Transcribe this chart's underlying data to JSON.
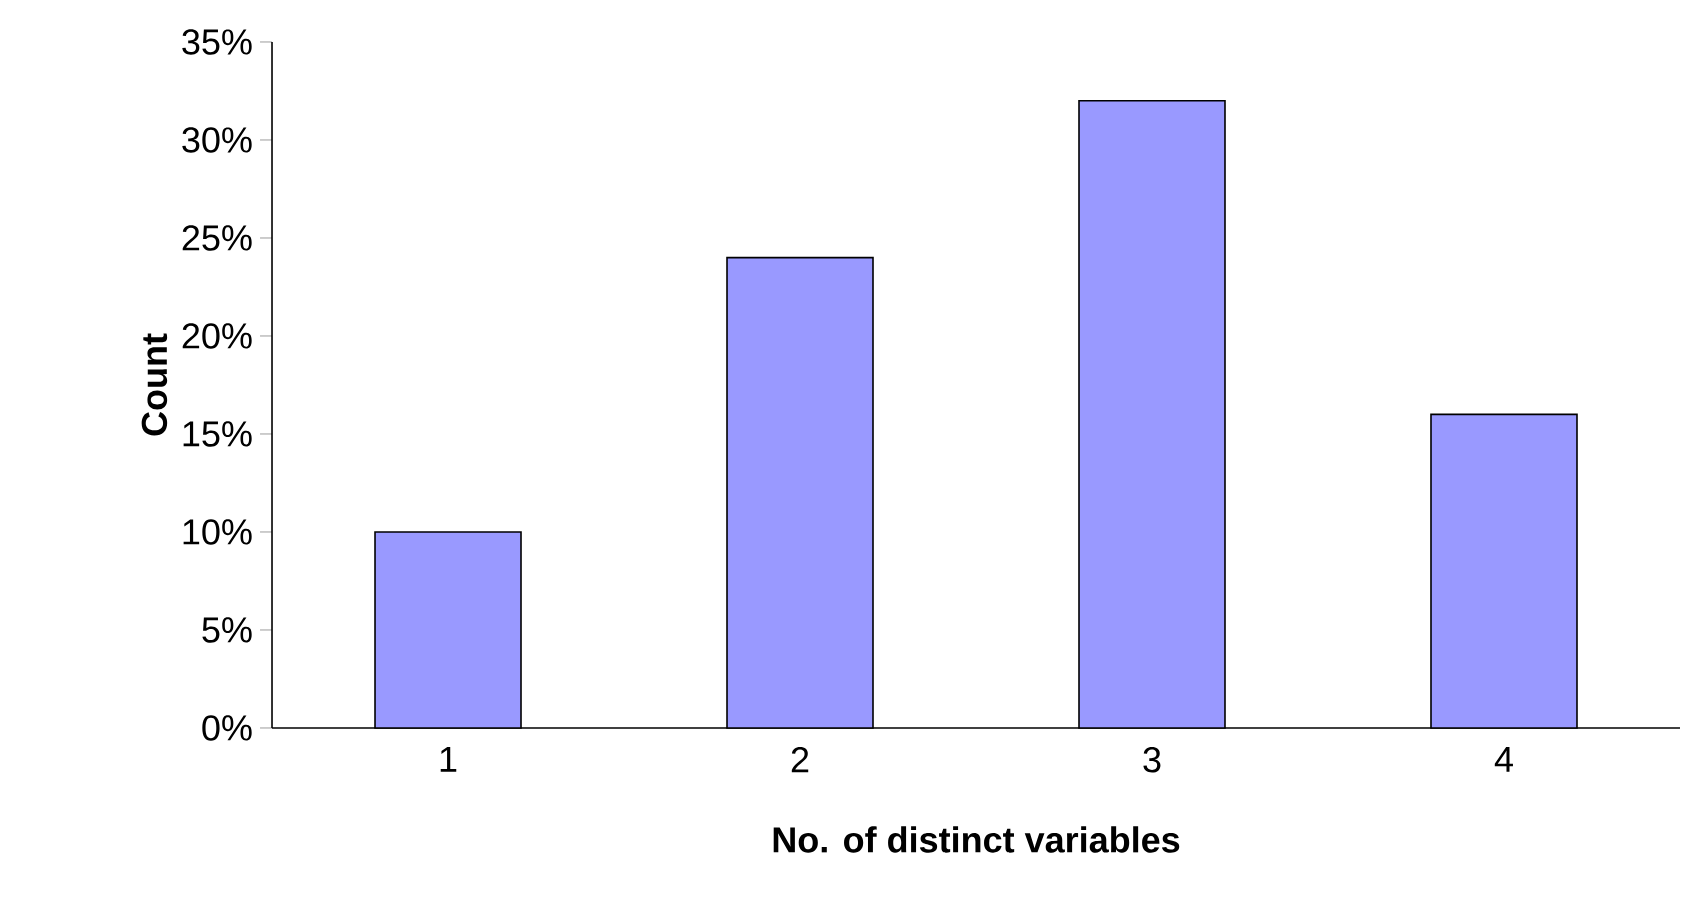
{
  "chart_data": {
    "type": "bar",
    "xlabel": "No. of distinct variables",
    "ylabel": "Count",
    "categories": [
      "1",
      "2",
      "3",
      "4"
    ],
    "values": [
      10,
      24,
      32,
      16
    ],
    "color": "#9999ff",
    "ylim": [
      0,
      35
    ],
    "yticks": [
      {
        "value": 0,
        "label": "0%"
      },
      {
        "value": 5,
        "label": "5%"
      },
      {
        "value": 10,
        "label": "10%"
      },
      {
        "value": 15,
        "label": "15%"
      },
      {
        "value": 20,
        "label": "20%"
      },
      {
        "value": 25,
        "label": "25%"
      },
      {
        "value": 30,
        "label": "30%"
      },
      {
        "value": 35,
        "label": "35%"
      }
    ],
    "grid": false
  }
}
